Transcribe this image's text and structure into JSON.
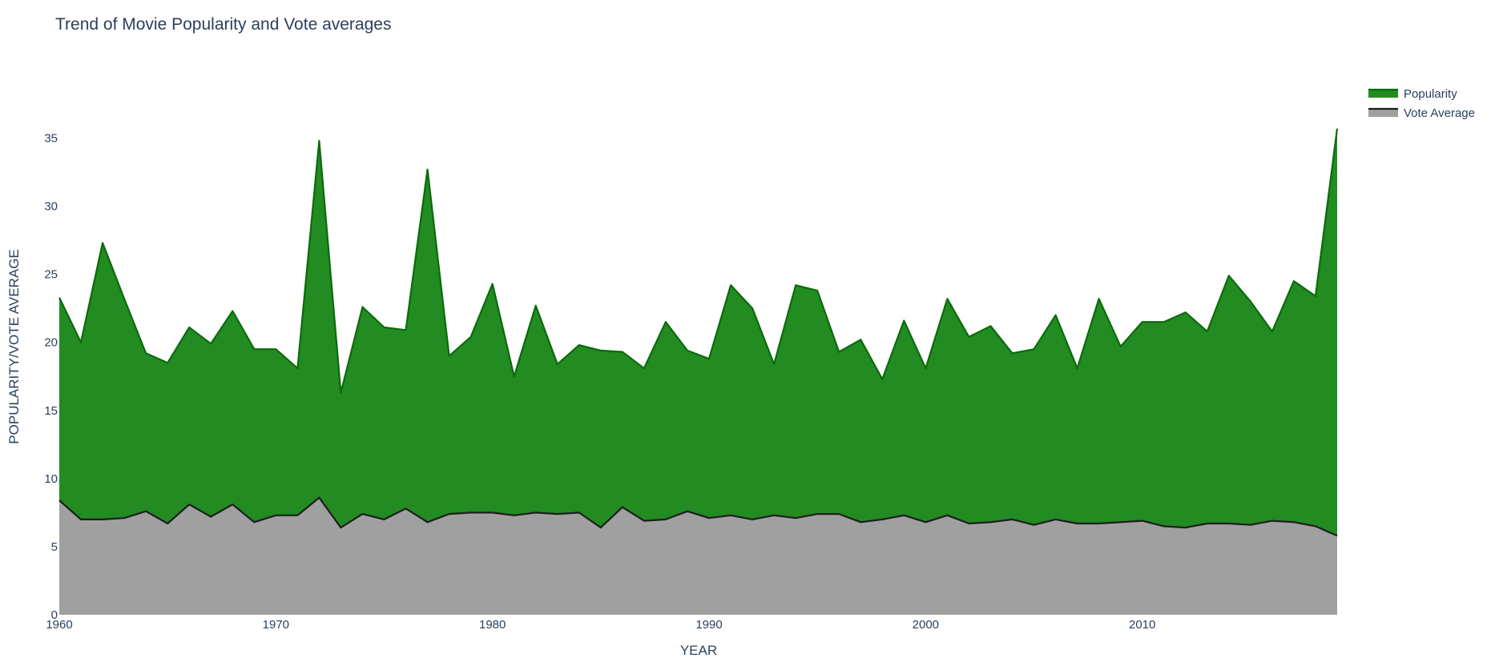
{
  "chart_data": {
    "type": "area",
    "title": "Trend of Movie Popularity and Vote averages",
    "xlabel": "YEAR",
    "ylabel": "POPULARITY/VOTE AVERAGE",
    "xlim": [
      1960,
      2019
    ],
    "ylim": [
      0,
      37.5
    ],
    "xticks": [
      1960,
      1970,
      1980,
      1990,
      2000,
      2010
    ],
    "yticks": [
      0,
      5,
      10,
      15,
      20,
      25,
      30,
      35
    ],
    "stacked": false,
    "grid": false,
    "legend_position": "top-right",
    "x": [
      1960,
      1961,
      1962,
      1963,
      1964,
      1965,
      1966,
      1967,
      1968,
      1969,
      1970,
      1971,
      1972,
      1973,
      1974,
      1975,
      1976,
      1977,
      1978,
      1979,
      1980,
      1981,
      1982,
      1983,
      1984,
      1985,
      1986,
      1987,
      1988,
      1989,
      1990,
      1991,
      1992,
      1993,
      1994,
      1995,
      1996,
      1997,
      1998,
      1999,
      2000,
      2001,
      2002,
      2003,
      2004,
      2005,
      2006,
      2007,
      2008,
      2009,
      2010,
      2011,
      2012,
      2013,
      2014,
      2015,
      2016,
      2017,
      2018,
      2019
    ],
    "series": [
      {
        "name": "Popularity",
        "fill": "#228b22",
        "line": "#0b6b0b",
        "values": [
          23.3,
          20.0,
          27.3,
          23.2,
          19.2,
          18.5,
          21.1,
          19.9,
          22.3,
          19.5,
          19.5,
          18.1,
          34.8,
          16.3,
          22.6,
          21.1,
          20.9,
          32.7,
          19.0,
          20.4,
          24.3,
          17.5,
          22.7,
          18.4,
          19.8,
          19.4,
          19.3,
          18.1,
          21.5,
          19.4,
          18.8,
          24.2,
          22.5,
          18.4,
          24.2,
          23.8,
          19.3,
          20.2,
          17.3,
          21.6,
          18.1,
          23.2,
          20.4,
          21.2,
          19.2,
          19.5,
          22.0,
          18.1,
          23.2,
          19.7,
          21.5,
          21.5,
          22.2,
          20.8,
          24.9,
          23.0,
          20.8,
          24.5,
          23.4,
          35.7
        ]
      },
      {
        "name": "Vote Average",
        "fill": "#a0a0a0",
        "line": "#1e1e1e",
        "values": [
          8.4,
          7.0,
          7.0,
          7.1,
          7.6,
          6.7,
          8.1,
          7.2,
          8.1,
          6.8,
          7.3,
          7.3,
          8.6,
          6.4,
          7.4,
          7.0,
          7.8,
          6.8,
          7.4,
          7.5,
          7.5,
          7.3,
          7.5,
          7.4,
          7.5,
          6.4,
          7.9,
          6.9,
          7.0,
          7.6,
          7.1,
          7.3,
          7.0,
          7.3,
          7.1,
          7.4,
          7.4,
          6.8,
          7.0,
          7.3,
          6.8,
          7.3,
          6.7,
          6.8,
          7.0,
          6.6,
          7.0,
          6.7,
          6.7,
          6.8,
          6.9,
          6.5,
          6.4,
          6.7,
          6.7,
          6.6,
          6.9,
          6.8,
          6.5,
          5.8
        ]
      }
    ]
  }
}
